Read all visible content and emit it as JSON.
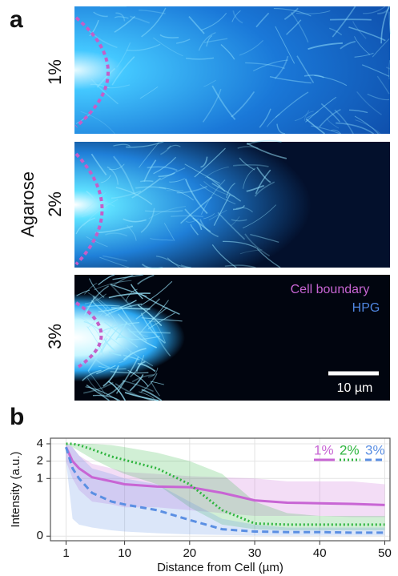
{
  "panel_a": {
    "label": "a",
    "rows": [
      "1%",
      "2%",
      "3%"
    ],
    "axis_label": "Agarose",
    "legend": [
      "Cell boundary",
      "HPG"
    ],
    "scale_bar": "10 µm"
  },
  "chart_data": {
    "type": "line",
    "panel_label": "b",
    "x_label": "Distance from Cell (µm)",
    "y_label": "Intensity (a.u.)",
    "x": [
      1,
      2,
      3,
      5,
      8,
      10,
      15,
      20,
      25,
      30,
      35,
      40,
      45,
      50
    ],
    "series": [
      {
        "name": "1%",
        "color": "#c865d4",
        "style": "solid",
        "values": [
          3.5,
          2,
          1.5,
          1.05,
          0.95,
          0.9,
          0.86,
          0.85,
          0.75,
          0.62,
          0.58,
          0.57,
          0.56,
          0.54
        ],
        "lower": [
          2,
          1,
          0.8,
          0.6,
          0.55,
          0.5,
          0.5,
          0.45,
          0.4,
          0.35,
          0.35,
          0.35,
          0.33,
          0.33
        ],
        "upper": [
          4,
          3.5,
          2.5,
          1.8,
          1.5,
          1.3,
          1.2,
          1.1,
          1.05,
          1,
          0.95,
          0.95,
          0.95,
          0.9
        ]
      },
      {
        "name": "2%",
        "color": "#2fb53f",
        "style": "dotted",
        "values": [
          4,
          4,
          3.8,
          3.2,
          2.4,
          2.1,
          1.5,
          0.9,
          0.45,
          0.22,
          0.2,
          0.2,
          0.2,
          0.2
        ],
        "lower": [
          4,
          3.5,
          3,
          2.2,
          1.5,
          1.2,
          0.9,
          0.5,
          0.2,
          0.12,
          0.1,
          0.1,
          0.1,
          0.1
        ],
        "upper": [
          4,
          4,
          4,
          4,
          3.8,
          3.5,
          2.8,
          2,
          1.2,
          0.6,
          0.4,
          0.35,
          0.35,
          0.35
        ]
      },
      {
        "name": "3%",
        "color": "#5b8fe3",
        "style": "dashed",
        "values": [
          3.5,
          1.5,
          1,
          0.75,
          0.6,
          0.55,
          0.45,
          0.28,
          0.12,
          0.08,
          0.07,
          0.07,
          0.06,
          0.06
        ],
        "lower": [
          2,
          0.3,
          0.2,
          0.15,
          0.1,
          0.08,
          0.05,
          0.03,
          0.02,
          0.01,
          0.01,
          0.01,
          0.01,
          0.01
        ],
        "upper": [
          4,
          3.5,
          2.5,
          1.5,
          1.2,
          1,
          0.9,
          0.6,
          0.3,
          0.2,
          0.15,
          0.15,
          0.15,
          0.15
        ]
      }
    ],
    "xlim": [
      -1.4,
      50.8
    ],
    "ylim": [
      -0.08,
      5
    ],
    "xticks": [
      1,
      10,
      20,
      30,
      40,
      50
    ],
    "yticks": [
      0,
      1,
      2,
      4
    ],
    "yscale": "symlog",
    "grid": true,
    "legend": "upper right"
  }
}
